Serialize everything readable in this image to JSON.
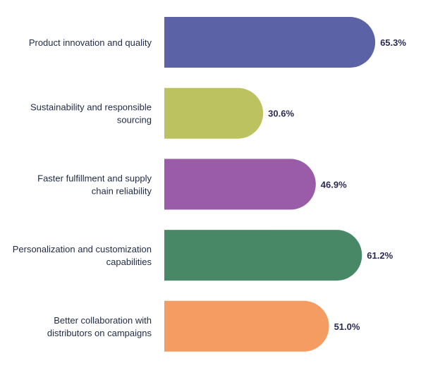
{
  "chart_data": {
    "type": "bar",
    "orientation": "horizontal",
    "categories": [
      [
        "Product innovation and quality"
      ],
      [
        "Sustainability and responsible",
        "sourcing"
      ],
      [
        "Faster fulfillment and supply",
        "chain reliability"
      ],
      [
        "Personalization and customization",
        "capabilities"
      ],
      [
        "Better collaboration with",
        "distributors on campaigns"
      ]
    ],
    "values": [
      65.3,
      30.6,
      46.9,
      61.2,
      51.0
    ],
    "value_labels": [
      "65.3%",
      "30.6%",
      "46.9%",
      "61.2%",
      "51.0%"
    ],
    "colors": [
      "#5b62a6",
      "#bdc260",
      "#9a5ca8",
      "#488866",
      "#f59c62"
    ],
    "xlim": [
      0,
      70
    ],
    "grid": false,
    "legend": "none"
  }
}
